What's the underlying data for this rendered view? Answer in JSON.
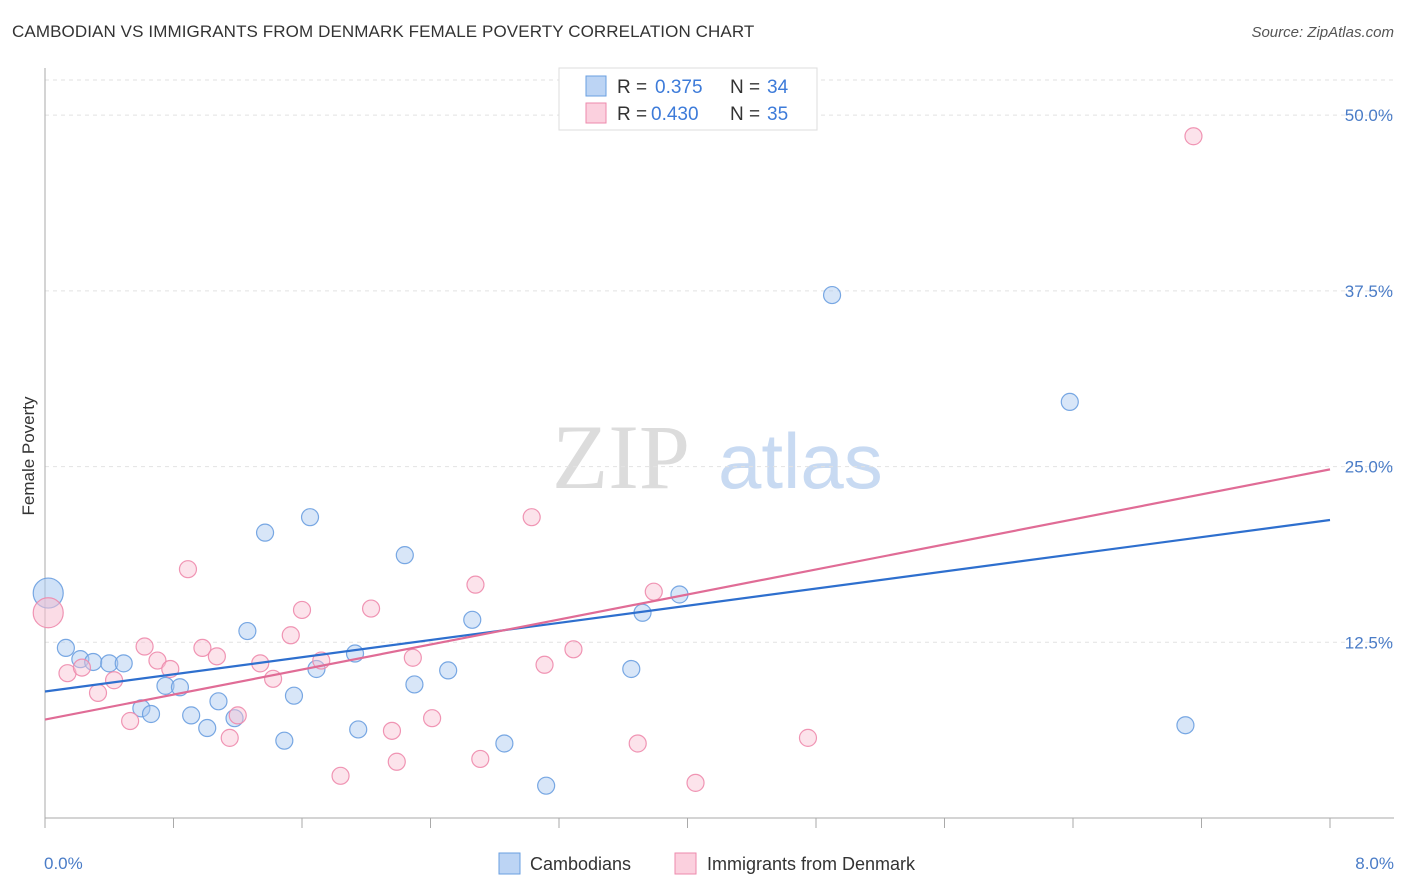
{
  "header": {
    "title": "CAMBODIAN VS IMMIGRANTS FROM DENMARK FEMALE POVERTY CORRELATION CHART",
    "source": "Source: ZipAtlas.com"
  },
  "watermark": {
    "zip": "ZIP",
    "atlas": "atlas"
  },
  "chart_data": {
    "type": "scatter",
    "title": "CAMBODIAN VS IMMIGRANTS FROM DENMARK FEMALE POVERTY CORRELATION CHART",
    "xlabel": "",
    "ylabel": "Female Poverty",
    "xlim": [
      0,
      8
    ],
    "ylim": [
      0,
      52.5
    ],
    "x_tick_labels": [
      "0.0%",
      "8.0%"
    ],
    "y_ticks": [
      12.5,
      25.0,
      37.5,
      50.0
    ],
    "y_tick_labels": [
      "12.5%",
      "25.0%",
      "37.5%",
      "50.0%"
    ],
    "grid": true,
    "legend_position": "top-center",
    "series": [
      {
        "name": "Cambodians",
        "color": "#a8c8f0",
        "edge": "#6a9fe0",
        "line_color": "#2e6fce",
        "R": "0.375",
        "N": "34",
        "trend": [
          [
            0,
            9.0
          ],
          [
            8,
            21.2
          ]
        ],
        "points": [
          [
            0.02,
            16.0
          ],
          [
            0.13,
            12.1
          ],
          [
            0.22,
            11.3
          ],
          [
            0.3,
            11.1
          ],
          [
            0.4,
            11.0
          ],
          [
            0.49,
            11.0
          ],
          [
            0.6,
            7.8
          ],
          [
            0.66,
            7.4
          ],
          [
            0.75,
            9.4
          ],
          [
            0.84,
            9.3
          ],
          [
            0.91,
            7.3
          ],
          [
            1.01,
            6.4
          ],
          [
            1.08,
            8.3
          ],
          [
            1.18,
            7.1
          ],
          [
            1.26,
            13.3
          ],
          [
            1.37,
            20.3
          ],
          [
            1.49,
            5.5
          ],
          [
            1.55,
            8.7
          ],
          [
            1.65,
            21.4
          ],
          [
            1.69,
            10.6
          ],
          [
            1.93,
            11.7
          ],
          [
            1.95,
            6.3
          ],
          [
            2.24,
            18.7
          ],
          [
            2.3,
            9.5
          ],
          [
            2.51,
            10.5
          ],
          [
            2.66,
            14.1
          ],
          [
            2.86,
            5.3
          ],
          [
            3.12,
            2.3
          ],
          [
            3.65,
            10.6
          ],
          [
            3.72,
            14.6
          ],
          [
            3.95,
            15.9
          ],
          [
            4.9,
            37.2
          ],
          [
            6.38,
            29.6
          ],
          [
            7.1,
            6.6
          ]
        ]
      },
      {
        "name": "Immigrants from Denmark",
        "color": "#f8c0d2",
        "edge": "#ee8aac",
        "line_color": "#e06c96",
        "R": "0.430",
        "N": "35",
        "trend": [
          [
            0,
            7.0
          ],
          [
            8,
            24.8
          ]
        ],
        "points": [
          [
            0.02,
            14.6
          ],
          [
            0.14,
            10.3
          ],
          [
            0.23,
            10.7
          ],
          [
            0.33,
            8.9
          ],
          [
            0.43,
            9.8
          ],
          [
            0.53,
            6.9
          ],
          [
            0.62,
            12.2
          ],
          [
            0.7,
            11.2
          ],
          [
            0.78,
            10.6
          ],
          [
            0.89,
            17.7
          ],
          [
            0.98,
            12.1
          ],
          [
            1.07,
            11.5
          ],
          [
            1.15,
            5.7
          ],
          [
            1.2,
            7.3
          ],
          [
            1.34,
            11.0
          ],
          [
            1.42,
            9.9
          ],
          [
            1.53,
            13.0
          ],
          [
            1.6,
            14.8
          ],
          [
            1.72,
            11.2
          ],
          [
            1.84,
            3.0
          ],
          [
            2.03,
            14.9
          ],
          [
            2.16,
            6.2
          ],
          [
            2.19,
            4.0
          ],
          [
            2.29,
            11.4
          ],
          [
            2.41,
            7.1
          ],
          [
            2.68,
            16.6
          ],
          [
            2.71,
            4.2
          ],
          [
            3.03,
            21.4
          ],
          [
            3.11,
            10.9
          ],
          [
            3.29,
            12.0
          ],
          [
            3.69,
            5.3
          ],
          [
            3.79,
            16.1
          ],
          [
            4.05,
            2.5
          ],
          [
            4.75,
            5.7
          ],
          [
            7.15,
            48.5
          ]
        ]
      }
    ]
  },
  "legend": {
    "r_label": "R =",
    "n_label": "N =",
    "items": [
      {
        "r": "0.375",
        "n": "34"
      },
      {
        "r": "0.430",
        "n": "35"
      }
    ]
  },
  "bottom_legend": {
    "items": [
      "Cambodians",
      "Immigrants from Denmark"
    ]
  }
}
